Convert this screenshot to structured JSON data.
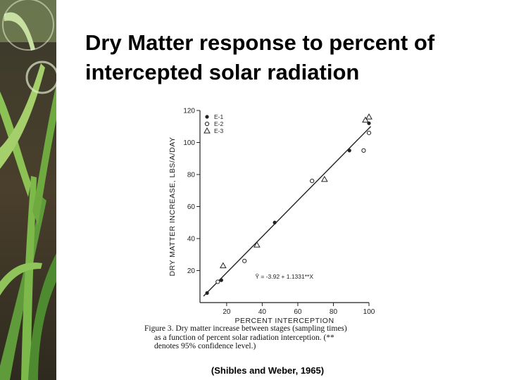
{
  "slide": {
    "title_line1": "Dry Matter response to percent of",
    "title_line2": "intercepted solar radiation",
    "citation": "(Shibles and Weber, 1965)"
  },
  "caption": {
    "line1": "Figure 3. Dry matter increase between stages (sampling times)",
    "line2": "as a function of percent solar radiation interception. (**",
    "line3": "denotes 95% confidence level.)"
  },
  "chart_data": {
    "type": "scatter",
    "xlabel": "PERCENT INTERCEPTION",
    "ylabel": "DRY MATTER INCREASE, LBS/A/DAY",
    "xlim": [
      5,
      100
    ],
    "ylim": [
      0,
      120
    ],
    "xticks": [
      20,
      40,
      60,
      80,
      100
    ],
    "yticks": [
      20,
      40,
      60,
      80,
      100,
      120
    ],
    "grid": false,
    "legend": "top-left",
    "equation": "Ŷ = -3.92 + 1.1331**X",
    "series": [
      {
        "name": "E-1",
        "marker": "filled-circle",
        "x": [
          9,
          17,
          47,
          89,
          100
        ],
        "y": [
          6,
          14,
          50,
          95,
          112
        ]
      },
      {
        "name": "E-2",
        "marker": "open-circle",
        "x": [
          15,
          30,
          68,
          97,
          100
        ],
        "y": [
          13,
          26,
          76,
          95,
          106
        ]
      },
      {
        "name": "E-3",
        "marker": "open-triangle",
        "x": [
          18,
          37,
          75,
          98,
          100
        ],
        "y": [
          23,
          36,
          77,
          114,
          116
        ]
      }
    ],
    "fit_line": {
      "x": [
        7,
        101
      ],
      "y": [
        4,
        110
      ]
    }
  },
  "colors": {
    "ink": "#222222",
    "background": "#ffffff"
  }
}
